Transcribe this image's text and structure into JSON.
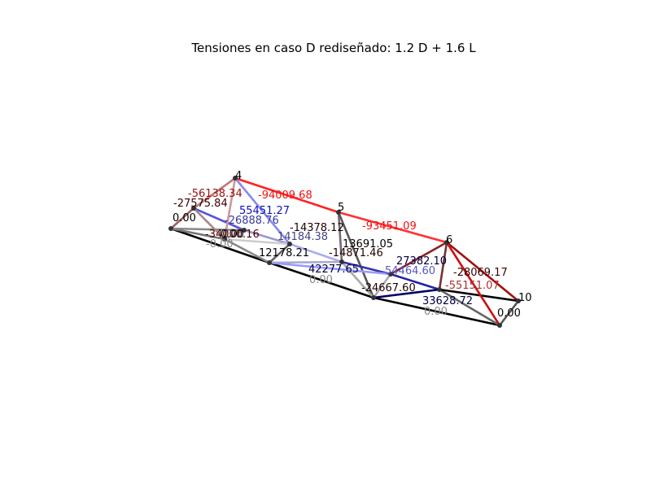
{
  "title": "Tensiones en caso D rediseñado: 1.2 D + 1.6 L",
  "nodes": [
    {
      "id": "n4",
      "label": "4"
    },
    {
      "id": "n5",
      "label": "5"
    },
    {
      "id": "n6",
      "label": "6"
    },
    {
      "id": "n10",
      "label": "10"
    }
  ],
  "force_labels": [
    {
      "id": "f1",
      "text": "-56138.34",
      "color": "#a01010"
    },
    {
      "id": "f2",
      "text": "-94009.68",
      "color": "#ee1010"
    },
    {
      "id": "f3",
      "text": "-27575.84",
      "color": "#3a0000"
    },
    {
      "id": "f4",
      "text": "55451.27",
      "color": "#1010bb"
    },
    {
      "id": "f5",
      "text": "0.00",
      "color": "#000000"
    },
    {
      "id": "f6",
      "text": "-26888.76",
      "color": "#3a3aa0"
    },
    {
      "id": "f7",
      "text": "-14378.12",
      "color": "#200000"
    },
    {
      "id": "f8",
      "text": "-93451.09",
      "color": "#ee1010"
    },
    {
      "id": "f9",
      "text": "-34000.16",
      "color": "#4a0000"
    },
    {
      "id": "f10",
      "text": "14184.38",
      "color": "#444488"
    },
    {
      "id": "f11",
      "text": "-0.00",
      "color": "#888888"
    },
    {
      "id": "f12",
      "text": "13691.05",
      "color": "#000000"
    },
    {
      "id": "f13",
      "text": "12178.21",
      "color": "#000000"
    },
    {
      "id": "f14",
      "text": "-14871.46",
      "color": "#200000"
    },
    {
      "id": "f15",
      "text": "27382.10",
      "color": "#000044"
    },
    {
      "id": "f16",
      "text": "-28069.17",
      "color": "#3a0000"
    },
    {
      "id": "f17",
      "text": "42277.65",
      "color": "#000044"
    },
    {
      "id": "f18",
      "text": "54464.60",
      "color": "#5555cc"
    },
    {
      "id": "f19",
      "text": "0.00",
      "color": "#888888"
    },
    {
      "id": "f20",
      "text": "-55151.07",
      "color": "#b03030"
    },
    {
      "id": "f21",
      "text": "-24667.60",
      "color": "#200000"
    },
    {
      "id": "f22",
      "text": "33628.72",
      "color": "#000044"
    },
    {
      "id": "f23",
      "text": "0.00",
      "color": "#888888"
    },
    {
      "id": "f24",
      "text": "0.00",
      "color": "#000000"
    },
    {
      "id": "f25",
      "text": "0.00",
      "color": "#000000"
    }
  ],
  "colors": {
    "max_compression": "#ff0000",
    "max_tension": "#0000cc",
    "neutral": "#000000",
    "zero": "#aaaaaa"
  }
}
